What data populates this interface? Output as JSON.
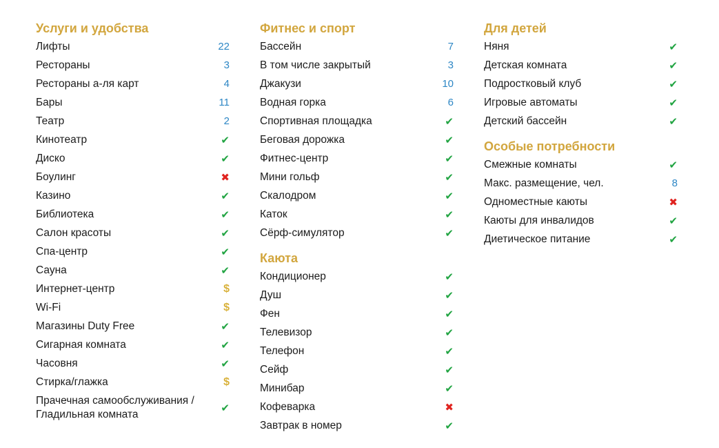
{
  "colors": {
    "heading": "#d2a63e",
    "text": "#1c1c1c",
    "count": "#2e87c5",
    "check": "#21a442",
    "cross": "#e0231f",
    "paid": "#d9b23c",
    "bg": "#ffffff"
  },
  "icons": {
    "check": "✔",
    "cross": "✖",
    "paid": "$"
  },
  "columns": [
    {
      "sections": [
        {
          "title": "Услуги и удобства",
          "items": [
            {
              "label": "Лифты",
              "type": "count",
              "value": "22"
            },
            {
              "label": "Рестораны",
              "type": "count",
              "value": "3"
            },
            {
              "label": "Рестораны а-ля карт",
              "type": "count",
              "value": "4"
            },
            {
              "label": "Бары",
              "type": "count",
              "value": "11"
            },
            {
              "label": "Театр",
              "type": "count",
              "value": "2"
            },
            {
              "label": "Кинотеатр",
              "type": "check"
            },
            {
              "label": "Диско",
              "type": "check"
            },
            {
              "label": "Боулинг",
              "type": "cross"
            },
            {
              "label": "Казино",
              "type": "check"
            },
            {
              "label": "Библиотека",
              "type": "check"
            },
            {
              "label": "Салон красоты",
              "type": "check"
            },
            {
              "label": "Спа-центр",
              "type": "check"
            },
            {
              "label": "Сауна",
              "type": "check"
            },
            {
              "label": "Интернет-центр",
              "type": "paid"
            },
            {
              "label": "Wi-Fi",
              "type": "paid"
            },
            {
              "label": "Магазины Duty Free",
              "type": "check"
            },
            {
              "label": "Сигарная комната",
              "type": "check"
            },
            {
              "label": "Часовня",
              "type": "check"
            },
            {
              "label": "Стирка/глажка",
              "type": "paid"
            },
            {
              "label": "Прачечная самообслуживания / Гладильная комната",
              "type": "check"
            }
          ]
        }
      ]
    },
    {
      "sections": [
        {
          "title": "Фитнес и спорт",
          "items": [
            {
              "label": "Бассейн",
              "type": "count",
              "value": "7"
            },
            {
              "label": "В том числе закрытый",
              "type": "count",
              "value": "3"
            },
            {
              "label": "Джакузи",
              "type": "count",
              "value": "10"
            },
            {
              "label": "Водная горка",
              "type": "count",
              "value": "6"
            },
            {
              "label": "Спортивная площадка",
              "type": "check"
            },
            {
              "label": "Беговая дорожка",
              "type": "check"
            },
            {
              "label": "Фитнес-центр",
              "type": "check"
            },
            {
              "label": "Мини гольф",
              "type": "check"
            },
            {
              "label": "Скалодром",
              "type": "check"
            },
            {
              "label": "Каток",
              "type": "check"
            },
            {
              "label": "Сёрф-симулятор",
              "type": "check"
            }
          ]
        },
        {
          "title": "Каюта",
          "items": [
            {
              "label": "Кондиционер",
              "type": "check"
            },
            {
              "label": "Душ",
              "type": "check"
            },
            {
              "label": "Фен",
              "type": "check"
            },
            {
              "label": "Телевизор",
              "type": "check"
            },
            {
              "label": "Телефон",
              "type": "check"
            },
            {
              "label": "Сейф",
              "type": "check"
            },
            {
              "label": "Минибар",
              "type": "check"
            },
            {
              "label": "Кофеварка",
              "type": "cross"
            },
            {
              "label": "Завтрак в номер",
              "type": "check"
            }
          ]
        }
      ]
    },
    {
      "sections": [
        {
          "title": "Для детей",
          "items": [
            {
              "label": "Няня",
              "type": "check"
            },
            {
              "label": "Детская комната",
              "type": "check"
            },
            {
              "label": "Подростковый клуб",
              "type": "check"
            },
            {
              "label": "Игровые автоматы",
              "type": "check"
            },
            {
              "label": "Детский бассейн",
              "type": "check"
            }
          ]
        },
        {
          "title": "Особые потребности",
          "items": [
            {
              "label": "Смежные комнаты",
              "type": "check"
            },
            {
              "label": "Макс. размещение, чел.",
              "type": "count",
              "value": "8"
            },
            {
              "label": "Одноместные каюты",
              "type": "cross"
            },
            {
              "label": "Каюты для инвалидов",
              "type": "check"
            },
            {
              "label": "Диетическое питание",
              "type": "check"
            }
          ]
        }
      ]
    }
  ]
}
